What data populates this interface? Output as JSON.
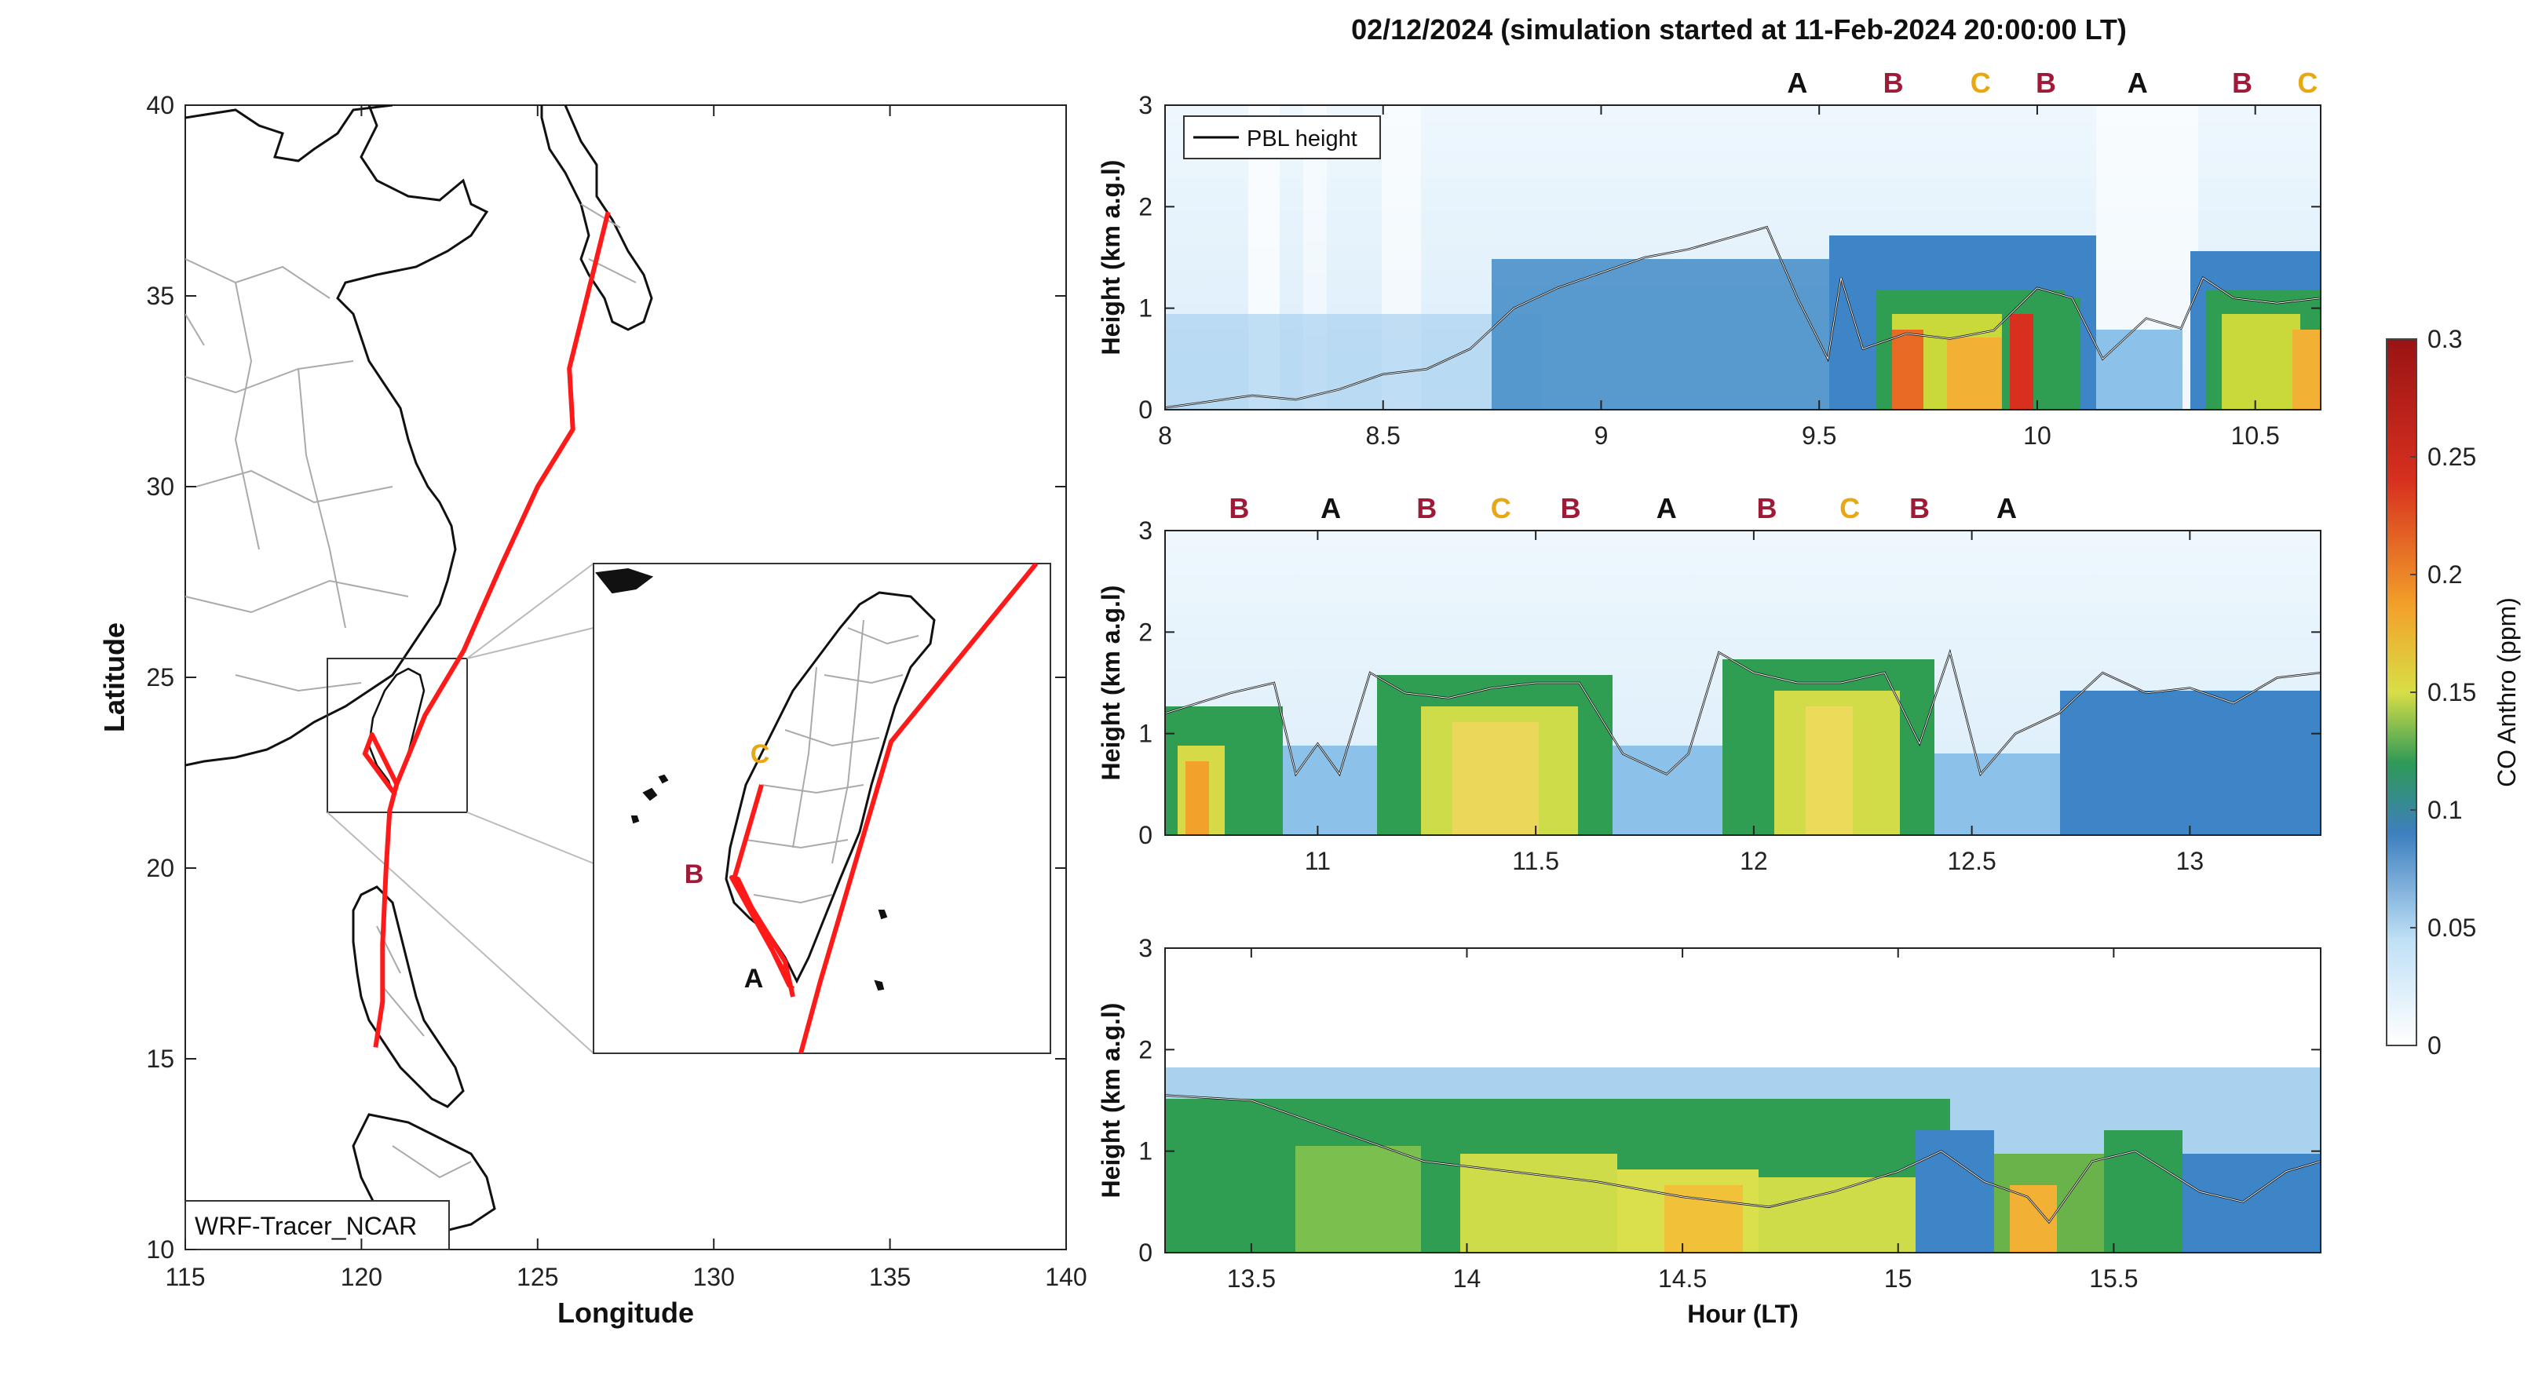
{
  "title": "02/12/2024 (simulation started at 11-Feb-2024 20:00:00 LT)",
  "map": {
    "xlabel": "Longitude",
    "ylabel": "Latitude",
    "xlim": [
      115,
      140
    ],
    "ylim": [
      10,
      40
    ],
    "xticks": [
      "115",
      "120",
      "125",
      "130",
      "135",
      "140"
    ],
    "yticks": [
      "10",
      "15",
      "20",
      "25",
      "30",
      "35",
      "40"
    ],
    "model_label": "WRF-Tracer_NCAR",
    "track_color": "#ff1a1a",
    "track": [
      [
        127.0,
        37.2
      ],
      [
        125.9,
        33.1
      ],
      [
        126.0,
        31.5
      ],
      [
        125.0,
        30.0
      ],
      [
        124.0,
        28.0
      ],
      [
        122.9,
        25.7
      ],
      [
        121.8,
        24.0
      ],
      [
        121.0,
        22.2
      ],
      [
        120.8,
        21.5
      ],
      [
        120.7,
        20.0
      ],
      [
        120.6,
        18.0
      ],
      [
        120.6,
        16.5
      ],
      [
        120.4,
        15.3
      ]
    ],
    "taiwan_box": {
      "lon": [
        119.0,
        122.4
      ],
      "lat": [
        21.5,
        26.0
      ]
    },
    "inset_labels": [
      "C",
      "B",
      "A"
    ]
  },
  "legend_pbl": "PBL height",
  "panels": [
    {
      "ylabel": "Height (km a.g.l)",
      "xlim": [
        8.0,
        10.65
      ],
      "ylim": [
        0,
        3
      ],
      "xticks": [
        "8",
        "8.5",
        "9",
        "9.5",
        "10",
        "10.5"
      ],
      "yticks": [
        "0",
        "1",
        "2",
        "3"
      ],
      "markers": [
        [
          "A",
          9.45
        ],
        [
          "B",
          9.67
        ],
        [
          "C",
          9.87
        ],
        [
          "B",
          10.02
        ],
        [
          "A",
          10.23
        ],
        [
          "B",
          10.47
        ],
        [
          "C",
          10.62
        ]
      ],
      "pbl": [
        [
          8.0,
          0.02
        ],
        [
          8.1,
          0.08
        ],
        [
          8.2,
          0.14
        ],
        [
          8.3,
          0.1
        ],
        [
          8.4,
          0.2
        ],
        [
          8.5,
          0.35
        ],
        [
          8.6,
          0.4
        ],
        [
          8.7,
          0.6
        ],
        [
          8.8,
          1.0
        ],
        [
          8.9,
          1.2
        ],
        [
          9.0,
          1.35
        ],
        [
          9.1,
          1.5
        ],
        [
          9.2,
          1.58
        ],
        [
          9.3,
          1.7
        ],
        [
          9.38,
          1.8
        ],
        [
          9.45,
          1.1
        ],
        [
          9.52,
          0.5
        ],
        [
          9.55,
          1.3
        ],
        [
          9.6,
          0.6
        ],
        [
          9.7,
          0.75
        ],
        [
          9.8,
          0.7
        ],
        [
          9.9,
          0.78
        ],
        [
          10.0,
          1.2
        ],
        [
          10.08,
          1.1
        ],
        [
          10.15,
          0.5
        ],
        [
          10.25,
          0.9
        ],
        [
          10.33,
          0.8
        ],
        [
          10.38,
          1.3
        ],
        [
          10.45,
          1.1
        ],
        [
          10.55,
          1.05
        ],
        [
          10.65,
          1.1
        ]
      ]
    },
    {
      "ylabel": "Height (km a.g.l)",
      "xlim": [
        10.65,
        13.3
      ],
      "ylim": [
        0,
        3
      ],
      "xticks": [
        "11",
        "11.5",
        "12",
        "12.5",
        "13"
      ],
      "yticks": [
        "0",
        "1",
        "2",
        "3"
      ],
      "markers": [
        [
          "B",
          10.82
        ],
        [
          "A",
          11.03
        ],
        [
          "B",
          11.25
        ],
        [
          "C",
          11.42
        ],
        [
          "B",
          11.58
        ],
        [
          "A",
          11.8
        ],
        [
          "B",
          12.03
        ],
        [
          "C",
          12.22
        ],
        [
          "B",
          12.38
        ],
        [
          "A",
          12.58
        ]
      ],
      "pbl": [
        [
          10.65,
          1.2
        ],
        [
          10.8,
          1.4
        ],
        [
          10.9,
          1.5
        ],
        [
          10.95,
          0.6
        ],
        [
          11.0,
          0.9
        ],
        [
          11.05,
          0.6
        ],
        [
          11.12,
          1.6
        ],
        [
          11.2,
          1.4
        ],
        [
          11.3,
          1.35
        ],
        [
          11.4,
          1.45
        ],
        [
          11.5,
          1.5
        ],
        [
          11.6,
          1.5
        ],
        [
          11.7,
          0.8
        ],
        [
          11.8,
          0.6
        ],
        [
          11.85,
          0.8
        ],
        [
          11.92,
          1.8
        ],
        [
          12.0,
          1.6
        ],
        [
          12.1,
          1.5
        ],
        [
          12.2,
          1.5
        ],
        [
          12.3,
          1.6
        ],
        [
          12.38,
          0.9
        ],
        [
          12.45,
          1.8
        ],
        [
          12.52,
          0.6
        ],
        [
          12.6,
          1.0
        ],
        [
          12.7,
          1.2
        ],
        [
          12.8,
          1.6
        ],
        [
          12.9,
          1.4
        ],
        [
          13.0,
          1.45
        ],
        [
          13.1,
          1.3
        ],
        [
          13.2,
          1.55
        ],
        [
          13.3,
          1.6
        ]
      ]
    },
    {
      "ylabel": "Height (km a.g.l)",
      "xaxis_label": "Hour (LT)",
      "xlim": [
        13.3,
        15.98
      ],
      "ylim": [
        0,
        3
      ],
      "xticks": [
        "13.5",
        "14",
        "14.5",
        "15",
        "15.5"
      ],
      "yticks": [
        "0",
        "1",
        "2",
        "3"
      ],
      "markers": [],
      "pbl": [
        [
          13.3,
          1.55
        ],
        [
          13.5,
          1.5
        ],
        [
          13.7,
          1.2
        ],
        [
          13.9,
          0.9
        ],
        [
          14.1,
          0.8
        ],
        [
          14.3,
          0.7
        ],
        [
          14.5,
          0.55
        ],
        [
          14.7,
          0.45
        ],
        [
          14.85,
          0.6
        ],
        [
          15.0,
          0.8
        ],
        [
          15.1,
          1.0
        ],
        [
          15.2,
          0.7
        ],
        [
          15.3,
          0.55
        ],
        [
          15.35,
          0.3
        ],
        [
          15.45,
          0.9
        ],
        [
          15.55,
          1.0
        ],
        [
          15.7,
          0.6
        ],
        [
          15.8,
          0.5
        ],
        [
          15.9,
          0.8
        ],
        [
          15.98,
          0.9
        ]
      ]
    }
  ],
  "colorbar": {
    "label": "CO Anthro (ppm)",
    "ticks": [
      "0",
      "0.05",
      "0.1",
      "0.15",
      "0.2",
      "0.25",
      "0.3"
    ],
    "range": [
      0,
      0.3
    ]
  },
  "marker_colors": {
    "A": "#111111",
    "B": "#9e1a36",
    "C": "#e8a713"
  }
}
